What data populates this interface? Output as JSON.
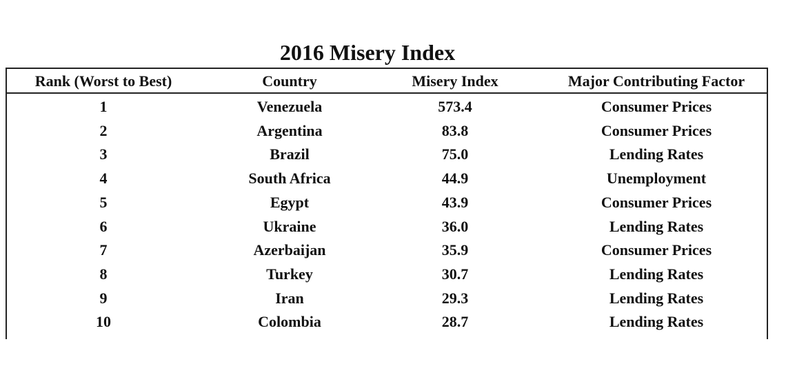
{
  "title": "2016 Misery Index",
  "table": {
    "header": [
      "Rank (Worst to Best)",
      "Country",
      "Misery Index",
      "Major Contributing Factor"
    ],
    "rows": [
      [
        "1",
        "Venezuela",
        "573.4",
        "Consumer Prices"
      ],
      [
        "2",
        "Argentina",
        "83.8",
        "Consumer Prices"
      ],
      [
        "3",
        "Brazil",
        "75.0",
        "Lending Rates"
      ],
      [
        "4",
        "South Africa",
        "44.9",
        "Unemployment"
      ],
      [
        "5",
        "Egypt",
        "43.9",
        "Consumer Prices"
      ],
      [
        "6",
        "Ukraine",
        "36.0",
        "Lending Rates"
      ],
      [
        "7",
        "Azerbaijan",
        "35.9",
        "Consumer Prices"
      ],
      [
        "8",
        "Turkey",
        "30.7",
        "Lending Rates"
      ],
      [
        "9",
        "Iran",
        "29.3",
        "Lending Rates"
      ],
      [
        "10",
        "Colombia",
        "28.7",
        "Lending Rates"
      ]
    ]
  }
}
